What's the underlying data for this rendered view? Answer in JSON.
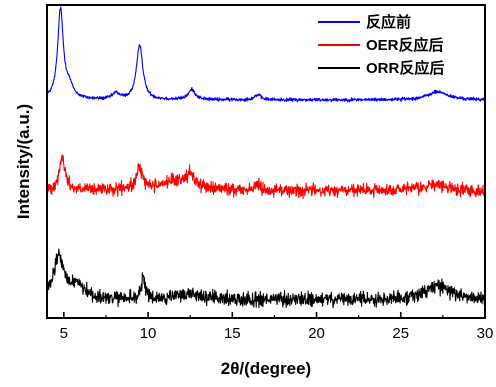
{
  "chart_data": {
    "type": "line",
    "title": "",
    "xlabel": "2θ/(degree)",
    "ylabel": "Intensity/(a.u.)",
    "xlim": [
      4,
      30
    ],
    "xticks": [
      5,
      10,
      15,
      20,
      25,
      30
    ],
    "yticks_shown": false,
    "legend_position": "top-right",
    "series": [
      {
        "name": "反应前",
        "color": "#0000ff",
        "offset": 2.0,
        "baseline": 0.08,
        "noise": 0.012,
        "peaks": [
          {
            "x": 4.8,
            "height": 0.88,
            "width": 0.2
          },
          {
            "x": 5.3,
            "height": 0.12,
            "width": 0.3
          },
          {
            "x": 8.1,
            "height": 0.06,
            "width": 0.25
          },
          {
            "x": 9.5,
            "height": 0.55,
            "width": 0.22
          },
          {
            "x": 12.6,
            "height": 0.1,
            "width": 0.25
          },
          {
            "x": 16.5,
            "height": 0.05,
            "width": 0.22
          },
          {
            "x": 27.2,
            "height": 0.08,
            "width": 0.7
          }
        ]
      },
      {
        "name": "OER反应后",
        "color": "#ff0000",
        "offset": 1.1,
        "baseline": 0.08,
        "noise": 0.045,
        "peaks": [
          {
            "x": 4.9,
            "height": 0.32,
            "width": 0.22
          },
          {
            "x": 9.5,
            "height": 0.22,
            "width": 0.2
          },
          {
            "x": 11.5,
            "height": 0.08,
            "width": 1.2
          },
          {
            "x": 12.5,
            "height": 0.12,
            "width": 0.4
          },
          {
            "x": 16.5,
            "height": 0.05,
            "width": 0.25
          },
          {
            "x": 27.0,
            "height": 0.06,
            "width": 0.8
          }
        ]
      },
      {
        "name": "ORR反应后",
        "color": "#000000",
        "offset": 0.0,
        "baseline": 0.1,
        "noise": 0.05,
        "peaks": [
          {
            "x": 4.7,
            "height": 0.42,
            "width": 0.35
          },
          {
            "x": 5.8,
            "height": 0.15,
            "width": 0.5
          },
          {
            "x": 9.7,
            "height": 0.2,
            "width": 0.15
          },
          {
            "x": 12.5,
            "height": 0.06,
            "width": 0.8
          },
          {
            "x": 27.2,
            "height": 0.14,
            "width": 0.9
          }
        ]
      }
    ]
  }
}
